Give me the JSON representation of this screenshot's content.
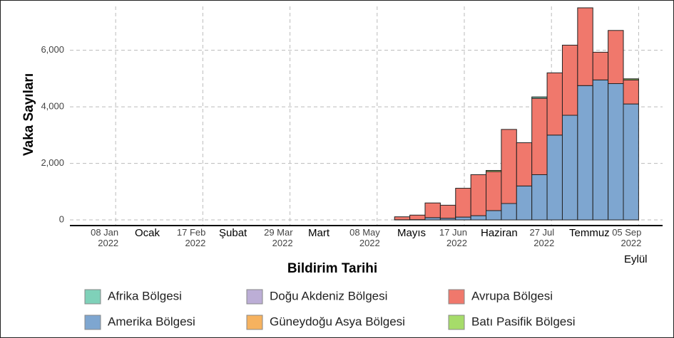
{
  "chart_data": {
    "type": "bar",
    "stacked": true,
    "x_label": "Bildirim Tarihi",
    "y_label": "Vaka Sayıları",
    "x": [
      "2022-01-03",
      "2022-01-10",
      "2022-02-07",
      "2022-02-14",
      "2022-02-28",
      "2022-03-07",
      "2022-03-14",
      "2022-03-28",
      "2022-04-04",
      "2022-04-11",
      "2022-05-02",
      "2022-05-09",
      "2022-05-16",
      "2022-05-23",
      "2022-05-30",
      "2022-06-06",
      "2022-06-13",
      "2022-06-20",
      "2022-06-27",
      "2022-07-04",
      "2022-07-11",
      "2022-07-18",
      "2022-07-25",
      "2022-08-01",
      "2022-08-08",
      "2022-08-15",
      "2022-08-22",
      "2022-08-29"
    ],
    "xlim": [
      "2021-12-18",
      "2022-09-16"
    ],
    "xticks": [
      {
        "value": "2022-01-08",
        "label": "08 Jan 2022"
      },
      {
        "value": "2022-02-17",
        "label": "17 Feb 2022"
      },
      {
        "value": "2022-03-29",
        "label": "29 Mar 2022"
      },
      {
        "value": "2022-05-08",
        "label": "08 May 2022"
      },
      {
        "value": "2022-06-17",
        "label": "17 Jun 2022"
      },
      {
        "value": "2022-07-27",
        "label": "27 Jul 2022"
      },
      {
        "value": "2022-09-05",
        "label": "05 Sep 2022"
      }
    ],
    "ylim": [
      -200,
      7550
    ],
    "yticks": [
      0,
      {
        "value": 2000,
        "label": "2,000"
      },
      {
        "value": 4000,
        "label": "4,000"
      },
      {
        "value": 6000,
        "label": "6,000"
      }
    ],
    "grid": true,
    "month_annotations": [
      "Ocak",
      "Şubat",
      "Mart",
      "Mayıs",
      "Haziran",
      "Temmuz",
      "Eylül"
    ],
    "series": [
      {
        "name": "Afrika  Bölgesi",
        "color": "#7fd1b9",
        "values": [
          0,
          0,
          0,
          0,
          0,
          0,
          0,
          0,
          0,
          0,
          0,
          0,
          0,
          0,
          0,
          0,
          0,
          0,
          0,
          0,
          0,
          50,
          0,
          0,
          0,
          0,
          0,
          0
        ]
      },
      {
        "name": "Doğu Akdeniz Bölgesi",
        "color": "#bcaed6",
        "values": [
          0,
          0,
          0,
          0,
          0,
          0,
          0,
          0,
          0,
          0,
          0,
          0,
          0,
          0,
          0,
          0,
          0,
          0,
          0,
          0,
          0,
          0,
          0,
          0,
          0,
          0,
          0,
          0
        ]
      },
      {
        "name": "Avrupa Bölgesi",
        "color": "#f0786c",
        "values": [
          0,
          0,
          0,
          0,
          0,
          0,
          0,
          0,
          0,
          0,
          0,
          0,
          105,
          160,
          520,
          460,
          1020,
          1450,
          1380,
          2620,
          1530,
          2700,
          2200,
          2480,
          2750,
          980,
          1880,
          850
        ]
      },
      {
        "name": "Amerika  Bölgesi",
        "color": "#7ea6d0",
        "values": [
          0,
          0,
          0,
          0,
          0,
          0,
          0,
          0,
          0,
          0,
          0,
          0,
          5,
          10,
          80,
          60,
          100,
          150,
          330,
          580,
          1200,
          1600,
          3000,
          3700,
          4750,
          4950,
          4820,
          4100
        ]
      },
      {
        "name": "Güneydoğu Asya Bölgesi",
        "color": "#f6b25f",
        "values": [
          0,
          0,
          0,
          0,
          0,
          0,
          0,
          0,
          0,
          0,
          0,
          0,
          0,
          0,
          0,
          0,
          0,
          0,
          0,
          0,
          0,
          0,
          0,
          0,
          0,
          0,
          0,
          0
        ]
      },
      {
        "name": "Batı Pasifik Bölgesi",
        "color": "#a6dc6a",
        "values": [
          0,
          0,
          0,
          0,
          0,
          0,
          0,
          0,
          0,
          0,
          0,
          0,
          0,
          0,
          0,
          0,
          0,
          0,
          40,
          0,
          0,
          0,
          0,
          0,
          0,
          0,
          0,
          40
        ]
      }
    ]
  }
}
